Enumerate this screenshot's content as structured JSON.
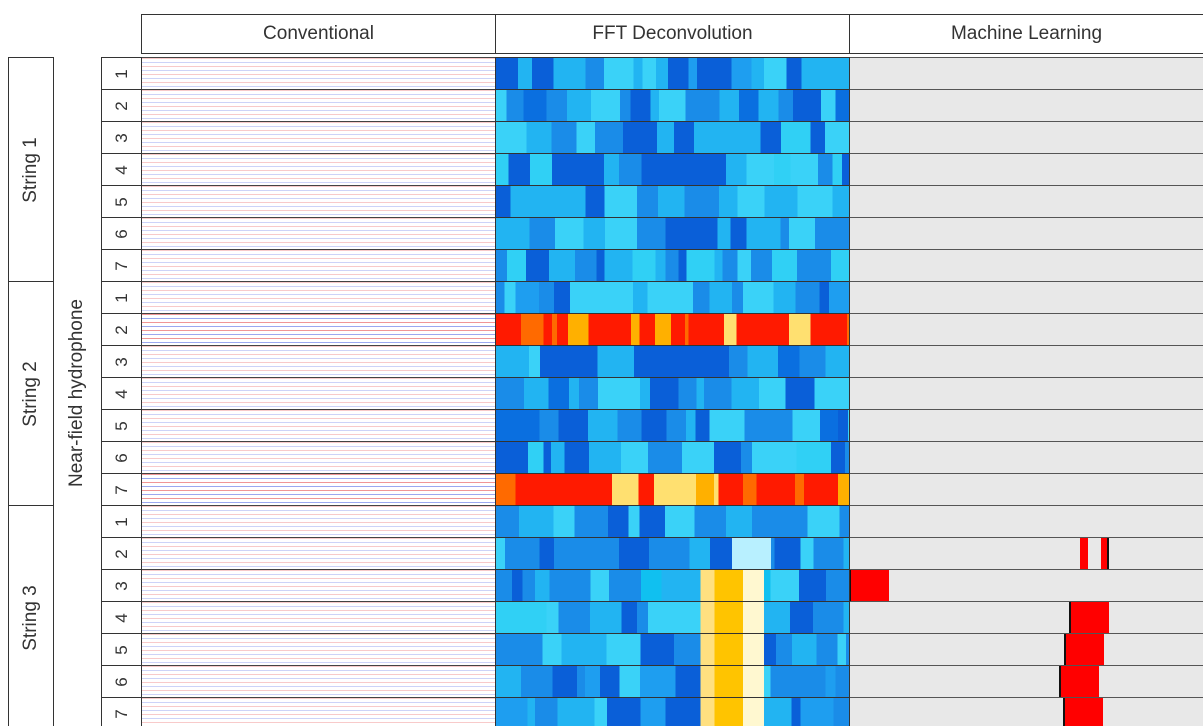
{
  "header": {
    "columns": [
      "Conventional",
      "FFT Deconvolution",
      "Machine Learning"
    ]
  },
  "axis_label": "Near-field hydrophone",
  "strings": [
    {
      "label": "String 1",
      "hydrophones": [
        "1",
        "2",
        "3",
        "4",
        "5",
        "6",
        "7"
      ]
    },
    {
      "label": "String 2",
      "hydrophones": [
        "1",
        "2",
        "3",
        "4",
        "5",
        "6",
        "7"
      ]
    },
    {
      "label": "String 3",
      "hydrophones": [
        "1",
        "2",
        "3",
        "4",
        "5",
        "6",
        "7"
      ]
    }
  ]
}
